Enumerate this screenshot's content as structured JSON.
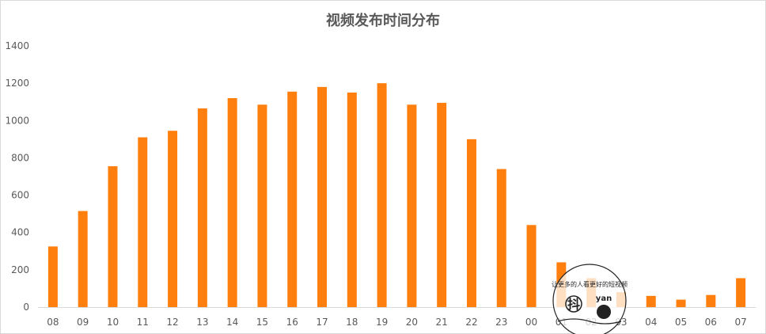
{
  "chart_data": {
    "type": "bar",
    "title": "视频发布时间分布",
    "xlabel": "",
    "ylabel": "",
    "categories": [
      "08",
      "09",
      "10",
      "11",
      "12",
      "13",
      "14",
      "15",
      "16",
      "17",
      "18",
      "19",
      "20",
      "21",
      "22",
      "23",
      "00",
      "01",
      "02",
      "03",
      "04",
      "05",
      "06",
      "07"
    ],
    "values": [
      325,
      515,
      755,
      910,
      945,
      1065,
      1120,
      1085,
      1155,
      1180,
      1150,
      1200,
      1085,
      1095,
      900,
      740,
      440,
      240,
      155,
      80,
      60,
      40,
      65,
      155
    ],
    "ylim": [
      0,
      1400
    ],
    "yticks": [
      0,
      200,
      400,
      600,
      800,
      1000,
      1200,
      1400
    ],
    "grid": false,
    "legend": "none",
    "bar_color": "#ff7f0e"
  },
  "watermark": {
    "slogan": "让更多的人看更好的短视频",
    "brand_left": "抖",
    "brand_right": "yan"
  }
}
